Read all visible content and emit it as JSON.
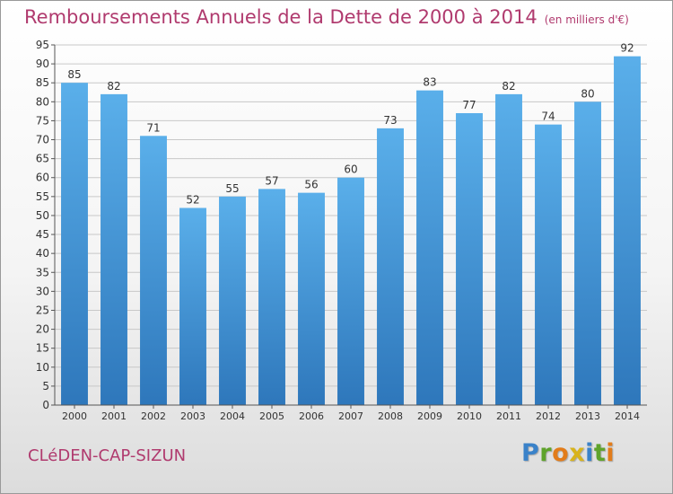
{
  "header": {
    "title": "Remboursements Annuels de la Dette de 2000 à 2014",
    "unit": "(en milliers d'€)"
  },
  "footer": {
    "commune": "CLéDEN-CAP-SIZUN",
    "logo_letters": [
      "P",
      "r",
      "o",
      "x",
      "i",
      "t",
      "i"
    ]
  },
  "colors": {
    "title": "#b03a6e",
    "bar_top": "#5aafea",
    "bar_bottom": "#2e77bb",
    "grid": "#c8c8c8"
  },
  "chart_data": {
    "type": "bar",
    "title": "Remboursements Annuels de la Dette de 2000 à 2014",
    "xlabel": "",
    "ylabel": "",
    "categories": [
      "2000",
      "2001",
      "2002",
      "2003",
      "2004",
      "2005",
      "2006",
      "2007",
      "2008",
      "2009",
      "2010",
      "2011",
      "2012",
      "2013",
      "2014"
    ],
    "values": [
      85,
      82,
      71,
      52,
      55,
      57,
      56,
      60,
      73,
      83,
      77,
      82,
      74,
      80,
      92
    ],
    "ylim": [
      0,
      95
    ],
    "ytick_step": 5,
    "grid": true,
    "data_labels": true
  }
}
